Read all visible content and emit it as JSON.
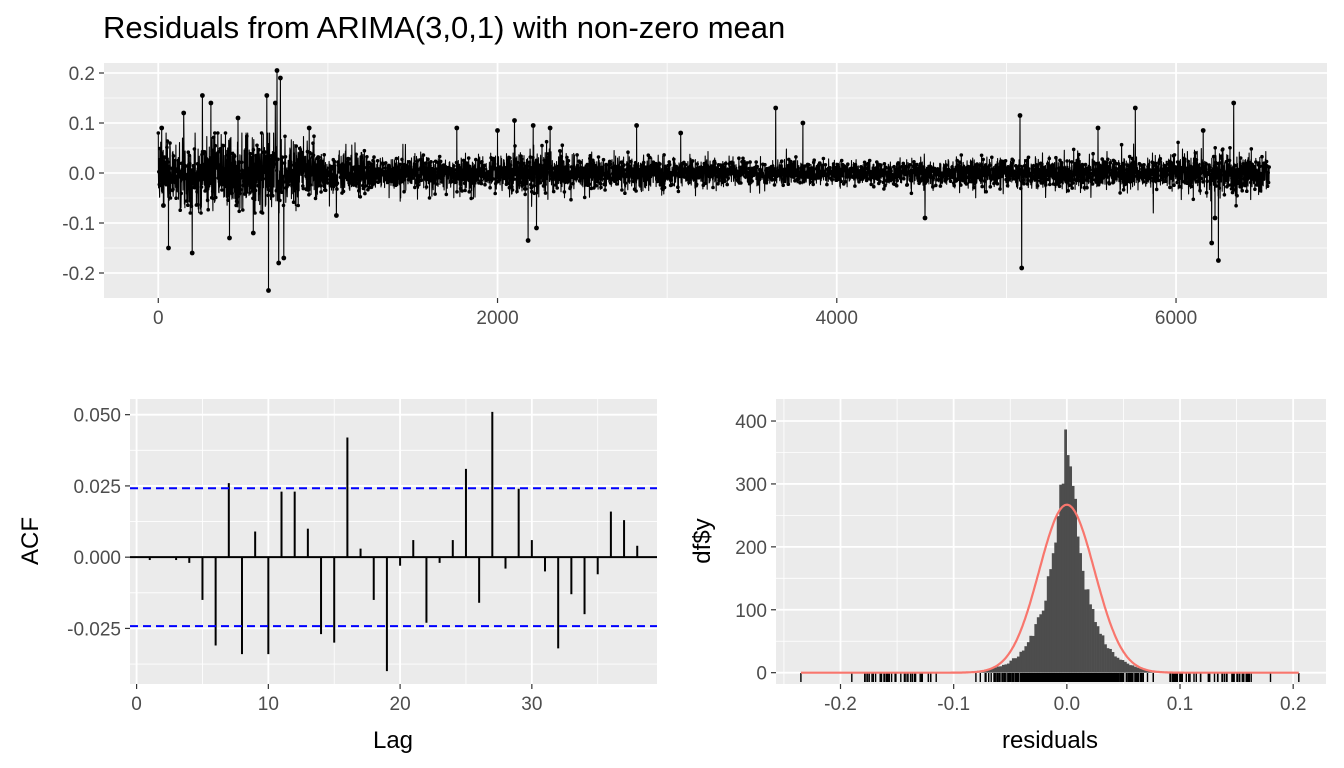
{
  "chart_data": [
    {
      "id": "residuals",
      "type": "line",
      "title": "Residuals from ARIMA(3,0,1) with non-zero mean",
      "xlabel": "",
      "ylabel": "",
      "xlim": [
        -320,
        6890
      ],
      "ylim": [
        -0.25,
        0.22
      ],
      "x_ticks": [
        0,
        2000,
        4000,
        6000
      ],
      "x_tick_labels": [
        "0",
        "2000",
        "4000",
        "6000"
      ],
      "y_ticks": [
        -0.2,
        -0.1,
        0.0,
        0.1,
        0.2
      ],
      "y_tick_labels": [
        "-0.2",
        "-0.1",
        "0.0",
        "0.1",
        "0.2"
      ],
      "n": 6550,
      "grid": true,
      "series_color": "#000000",
      "volatility_envelope": [
        {
          "x": 0,
          "sd": 0.042
        },
        {
          "x": 200,
          "sd": 0.045
        },
        {
          "x": 400,
          "sd": 0.048
        },
        {
          "x": 600,
          "sd": 0.05
        },
        {
          "x": 800,
          "sd": 0.04
        },
        {
          "x": 1000,
          "sd": 0.028
        },
        {
          "x": 1500,
          "sd": 0.022
        },
        {
          "x": 2000,
          "sd": 0.022
        },
        {
          "x": 2200,
          "sd": 0.032
        },
        {
          "x": 2500,
          "sd": 0.022
        },
        {
          "x": 3000,
          "sd": 0.02
        },
        {
          "x": 3500,
          "sd": 0.017
        },
        {
          "x": 4000,
          "sd": 0.015
        },
        {
          "x": 4500,
          "sd": 0.018
        },
        {
          "x": 5000,
          "sd": 0.02
        },
        {
          "x": 5500,
          "sd": 0.021
        },
        {
          "x": 6000,
          "sd": 0.025
        },
        {
          "x": 6300,
          "sd": 0.028
        },
        {
          "x": 6550,
          "sd": 0.022
        }
      ],
      "spikes": [
        {
          "x": 20,
          "y": 0.09
        },
        {
          "x": 30,
          "y": -0.065
        },
        {
          "x": 60,
          "y": -0.15
        },
        {
          "x": 150,
          "y": 0.12
        },
        {
          "x": 200,
          "y": -0.16
        },
        {
          "x": 260,
          "y": 0.155
        },
        {
          "x": 310,
          "y": 0.14
        },
        {
          "x": 420,
          "y": -0.13
        },
        {
          "x": 470,
          "y": 0.11
        },
        {
          "x": 560,
          "y": -0.12
        },
        {
          "x": 640,
          "y": 0.155
        },
        {
          "x": 650,
          "y": -0.235
        },
        {
          "x": 690,
          "y": 0.14
        },
        {
          "x": 700,
          "y": 0.205
        },
        {
          "x": 710,
          "y": -0.18
        },
        {
          "x": 720,
          "y": 0.19
        },
        {
          "x": 740,
          "y": -0.17
        },
        {
          "x": 890,
          "y": 0.09
        },
        {
          "x": 1050,
          "y": -0.085
        },
        {
          "x": 1760,
          "y": 0.09
        },
        {
          "x": 2000,
          "y": 0.085
        },
        {
          "x": 2100,
          "y": 0.105
        },
        {
          "x": 2180,
          "y": -0.135
        },
        {
          "x": 2210,
          "y": 0.095
        },
        {
          "x": 2230,
          "y": -0.11
        },
        {
          "x": 2310,
          "y": 0.09
        },
        {
          "x": 2820,
          "y": 0.095
        },
        {
          "x": 3080,
          "y": 0.08
        },
        {
          "x": 3640,
          "y": 0.13
        },
        {
          "x": 3800,
          "y": 0.1
        },
        {
          "x": 4520,
          "y": -0.09
        },
        {
          "x": 5080,
          "y": 0.115
        },
        {
          "x": 5090,
          "y": -0.19
        },
        {
          "x": 5540,
          "y": 0.09
        },
        {
          "x": 5760,
          "y": 0.13
        },
        {
          "x": 6160,
          "y": 0.085
        },
        {
          "x": 6210,
          "y": -0.14
        },
        {
          "x": 6230,
          "y": -0.09
        },
        {
          "x": 6250,
          "y": -0.175
        },
        {
          "x": 6340,
          "y": 0.14
        }
      ]
    },
    {
      "id": "acf",
      "type": "bar",
      "title": "",
      "xlabel": "Lag",
      "ylabel": "ACF",
      "xlim": [
        -0.5,
        39.5
      ],
      "ylim": [
        -0.0445,
        0.0555
      ],
      "x_ticks": [
        0,
        10,
        20,
        30
      ],
      "x_tick_labels": [
        "0",
        "10",
        "20",
        "30"
      ],
      "y_ticks": [
        -0.025,
        0.0,
        0.025,
        0.05
      ],
      "y_tick_labels": [
        "-0.025",
        "0.000",
        "0.025",
        "0.050"
      ],
      "lags": [
        1,
        2,
        3,
        4,
        5,
        6,
        7,
        8,
        9,
        10,
        11,
        12,
        13,
        14,
        15,
        16,
        17,
        18,
        19,
        20,
        21,
        22,
        23,
        24,
        25,
        26,
        27,
        28,
        29,
        30,
        31,
        32,
        33,
        34,
        35,
        36,
        37,
        38
      ],
      "values": [
        -0.001,
        0.0,
        -0.001,
        -0.002,
        -0.015,
        -0.031,
        0.026,
        -0.034,
        0.009,
        -0.034,
        0.023,
        0.023,
        0.01,
        -0.027,
        -0.03,
        0.042,
        0.003,
        -0.015,
        -0.04,
        -0.003,
        0.006,
        -0.023,
        -0.002,
        0.006,
        0.031,
        -0.016,
        0.051,
        -0.004,
        0.024,
        0.006,
        -0.005,
        -0.032,
        -0.013,
        -0.02,
        -0.006,
        0.016,
        0.013,
        0.004
      ],
      "confidence_bound": 0.0242,
      "bar_color": "#000000",
      "bound_color": "#0000ff",
      "grid": true
    },
    {
      "id": "histogram",
      "type": "bar",
      "title": "",
      "xlabel": "residuals",
      "ylabel": "df$y",
      "xlim": [
        -0.257,
        0.229
      ],
      "ylim": [
        -18,
        435
      ],
      "x_ticks": [
        -0.2,
        -0.1,
        0.0,
        0.1,
        0.2
      ],
      "x_tick_labels": [
        "-0.2",
        "-0.1",
        "0.0",
        "0.1",
        "0.2"
      ],
      "y_ticks": [
        0,
        100,
        200,
        300,
        400
      ],
      "y_tick_labels": [
        "0",
        "100",
        "200",
        "300",
        "400"
      ],
      "density_peak": 267,
      "density_sd": 0.0245,
      "histogram_peak": 405,
      "histogram_scale": 0.016,
      "range": [
        -0.235,
        0.205
      ],
      "bar_color": "#4d4d4d",
      "density_color": "#f8766d",
      "rug_color": "#000000",
      "grid": true
    }
  ]
}
